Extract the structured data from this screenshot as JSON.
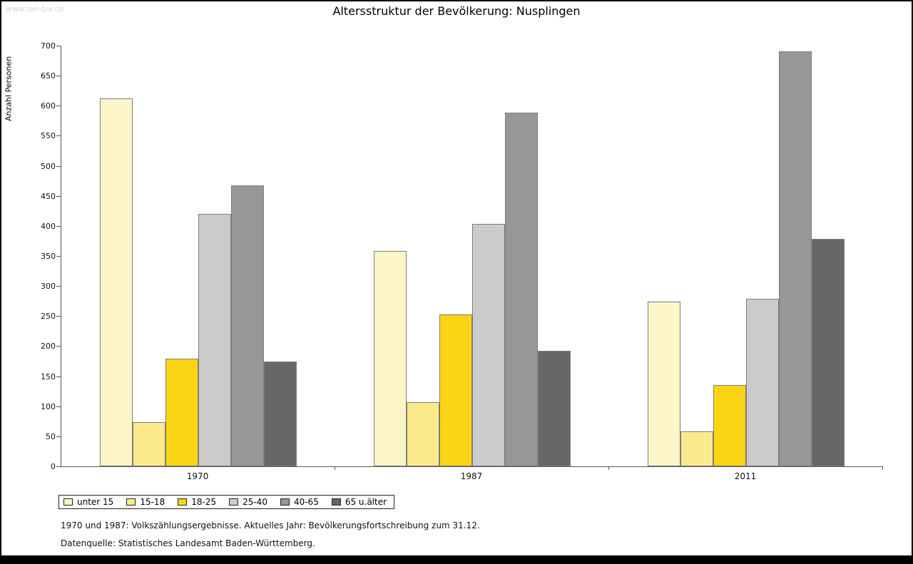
{
  "watermark": "www.leo-bw.de",
  "chart_data": {
    "type": "bar",
    "title": "Altersstruktur der Bevölkerung: Nusplingen",
    "xlabel": "",
    "ylabel": "Anzahl Personen",
    "ylim": [
      0,
      700
    ],
    "ytick_step": 50,
    "grid": false,
    "legend_position": "bottom",
    "categories": [
      "1970",
      "1987",
      "2011"
    ],
    "series": [
      {
        "name": "unter 15",
        "color": "#FCF5C8",
        "values": [
          612,
          358,
          274
        ]
      },
      {
        "name": "15-18",
        "color": "#FBEA8C",
        "values": [
          73,
          107,
          58
        ]
      },
      {
        "name": "18-25",
        "color": "#FBD513",
        "values": [
          179,
          253,
          135
        ]
      },
      {
        "name": "25-40",
        "color": "#CBCBCB",
        "values": [
          420,
          403,
          279
        ]
      },
      {
        "name": "40-65",
        "color": "#979797",
        "values": [
          467,
          588,
          690
        ]
      },
      {
        "name": "65 u.älter",
        "color": "#676767",
        "values": [
          174,
          192,
          378
        ]
      }
    ]
  },
  "footnotes": [
    "1970 und 1987: Volkszählungsergebnisse. Aktuelles Jahr: Bevölkerungsfortschreibung zum 31.12.",
    "Datenquelle: Statistisches Landesamt Baden-Württemberg."
  ]
}
